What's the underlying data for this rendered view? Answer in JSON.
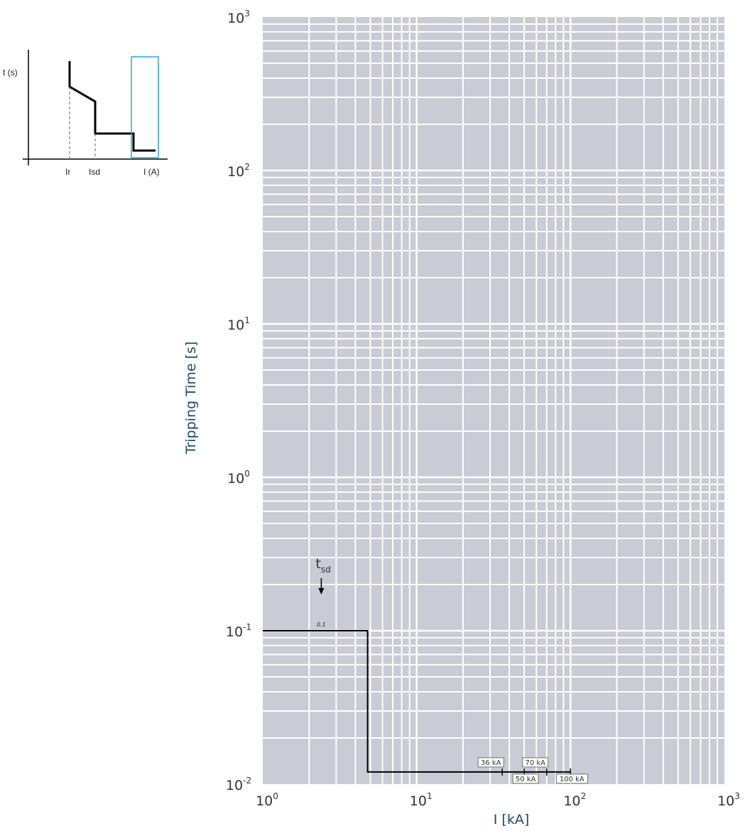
{
  "chart_data": {
    "type": "line",
    "xlabel": "I [kA]",
    "ylabel": "Tripping Time [s]",
    "x_scale": "log",
    "y_scale": "log",
    "xlim": [
      1,
      1000
    ],
    "ylim": [
      0.01,
      1000
    ],
    "x_ticks": [
      {
        "value": 1,
        "base": "10",
        "exp": "0"
      },
      {
        "value": 10,
        "base": "10",
        "exp": "1"
      },
      {
        "value": 100,
        "base": "10",
        "exp": "2"
      },
      {
        "value": 1000,
        "base": "10",
        "exp": "3"
      }
    ],
    "y_ticks": [
      {
        "value": 0.01,
        "base": "10",
        "exp": "-2"
      },
      {
        "value": 0.1,
        "base": "10",
        "exp": "-1"
      },
      {
        "value": 1,
        "base": "10",
        "exp": "0"
      },
      {
        "value": 10,
        "base": "10",
        "exp": "1"
      },
      {
        "value": 100,
        "base": "10",
        "exp": "2"
      },
      {
        "value": 1000,
        "base": "10",
        "exp": "3"
      }
    ],
    "grid": true,
    "grid_color": "#c9ccd4",
    "series": [
      {
        "color": "#000000",
        "points": [
          [
            1,
            0.1
          ],
          [
            4.8,
            0.1
          ],
          [
            4.8,
            0.012
          ],
          [
            100,
            0.012
          ]
        ]
      }
    ],
    "annotations": {
      "tsd": {
        "symbol": "t",
        "subscript": "sd",
        "value_label": "0.1",
        "x": 2.4
      },
      "breaking_capacities": [
        {
          "label": "36 kA",
          "x": 36,
          "position": "above"
        },
        {
          "label": "50 kA",
          "x": 50,
          "position": "below"
        },
        {
          "label": "70 kA",
          "x": 70,
          "position": "above"
        },
        {
          "label": "100 kA",
          "x": 100,
          "position": "below"
        }
      ]
    }
  },
  "inset": {
    "y_label": "t (s)",
    "x_labels": [
      "Ir",
      "Isd",
      "I (A)"
    ],
    "highlight_color": "#29a3e0"
  }
}
